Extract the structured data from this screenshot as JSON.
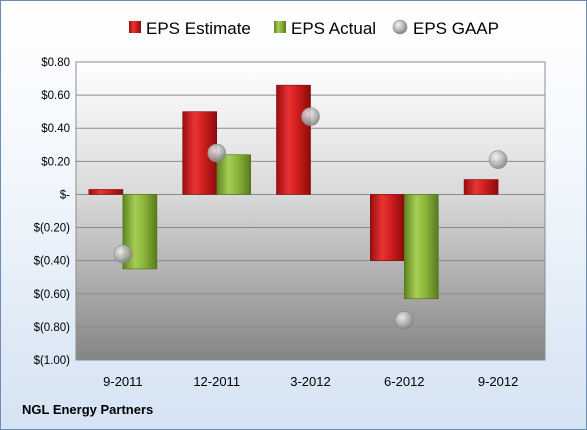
{
  "chart_data": {
    "type": "bar",
    "title": "",
    "categories": [
      "9-2011",
      "12-2011",
      "3-2012",
      "6-2012",
      "9-2012"
    ],
    "series": [
      {
        "name": "EPS Estimate",
        "kind": "bar",
        "color": "#d32020",
        "values": [
          0.03,
          0.5,
          0.66,
          -0.4,
          0.09
        ]
      },
      {
        "name": "EPS Actual",
        "kind": "bar",
        "color": "#8cb83a",
        "values": [
          -0.45,
          0.24,
          null,
          -0.63,
          null
        ]
      },
      {
        "name": "EPS GAAP",
        "kind": "scatter",
        "color": "#a8a8a8",
        "values": [
          -0.36,
          0.25,
          0.47,
          -0.76,
          0.21
        ]
      }
    ],
    "ylim": [
      -1.0,
      0.8
    ],
    "yticks": [
      0.8,
      0.6,
      0.4,
      0.2,
      0,
      -0.2,
      -0.4,
      -0.6,
      -0.8,
      -1.0
    ],
    "ytick_labels": [
      "$0.80",
      "$0.60",
      "$0.40",
      "$0.20",
      "$-",
      "$(0.20)",
      "$(0.40)",
      "$(0.60)",
      "$(0.80)",
      "$(1.00)"
    ],
    "grid": true,
    "legend": "top"
  },
  "footer": {
    "company": "NGL Energy Partners"
  }
}
